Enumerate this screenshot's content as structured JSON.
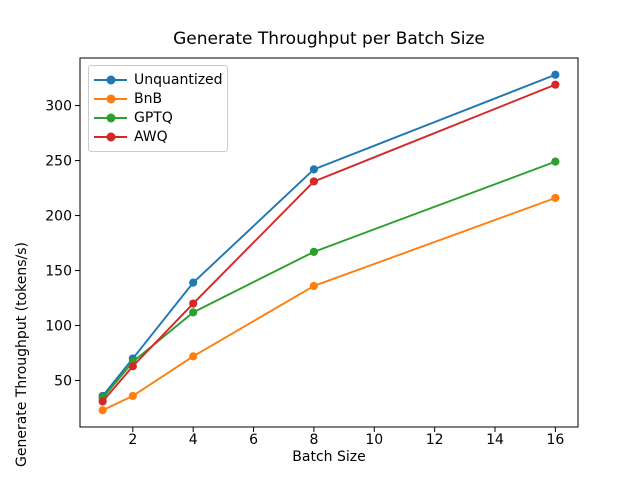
{
  "chart_data": {
    "type": "line",
    "title": "Generate Throughput per Batch Size",
    "xlabel": "Batch Size",
    "ylabel": "Generate Throughput (tokens/s)",
    "x": [
      1,
      2,
      4,
      8,
      16
    ],
    "series": [
      {
        "name": "Unquantized",
        "color": "#1f77b4",
        "values": [
          36,
          70,
          139,
          242,
          328
        ]
      },
      {
        "name": "BnB",
        "color": "#ff7f0e",
        "values": [
          23,
          36,
          72,
          136,
          216
        ]
      },
      {
        "name": "GPTQ",
        "color": "#2ca02c",
        "values": [
          34,
          67,
          112,
          167,
          249
        ]
      },
      {
        "name": "AWQ",
        "color": "#d62728",
        "values": [
          31,
          63,
          120,
          231,
          319
        ]
      }
    ],
    "xticks": [
      2,
      4,
      6,
      8,
      10,
      12,
      14,
      16
    ],
    "yticks": [
      50,
      100,
      150,
      200,
      250,
      300
    ],
    "xlim": [
      0.25,
      16.75
    ],
    "ylim": [
      7.75,
      343.25
    ],
    "grid": false,
    "legend_position": "upper left",
    "marker": "o",
    "axis_color": "#000000",
    "background_color": "#ffffff"
  }
}
